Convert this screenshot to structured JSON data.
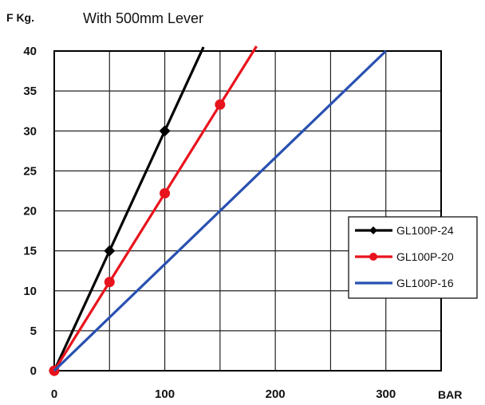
{
  "chart_data": {
    "type": "line",
    "title": "With 500mm Lever",
    "ylabel": "F Kg.",
    "xlabel": "BAR",
    "xlim": [
      0,
      350
    ],
    "ylim": [
      0,
      40
    ],
    "x_ticks": [
      "0",
      "100",
      "200",
      "300"
    ],
    "y_ticks": [
      "0",
      "5",
      "10",
      "15",
      "20",
      "25",
      "30",
      "35",
      "40"
    ],
    "grid": true,
    "legend_position": "right",
    "series": [
      {
        "name": "GL100P-24",
        "color": "#000000",
        "marker": "diamond",
        "x": [
          0,
          50,
          100,
          135
        ],
        "y": [
          0,
          15,
          30,
          40.5
        ],
        "marker_indices": [
          0,
          1,
          2
        ]
      },
      {
        "name": "GL100P-20",
        "color": "#e8141d",
        "marker": "circle",
        "x": [
          0,
          50,
          100,
          150,
          183
        ],
        "y": [
          0,
          11.1,
          22.2,
          33.3,
          40.6
        ],
        "marker_indices": [
          0,
          1,
          2,
          3
        ]
      },
      {
        "name": "GL100P-16",
        "color": "#2850b0",
        "marker": "none",
        "x": [
          0,
          300
        ],
        "y": [
          0,
          40
        ],
        "marker_indices": []
      }
    ]
  }
}
